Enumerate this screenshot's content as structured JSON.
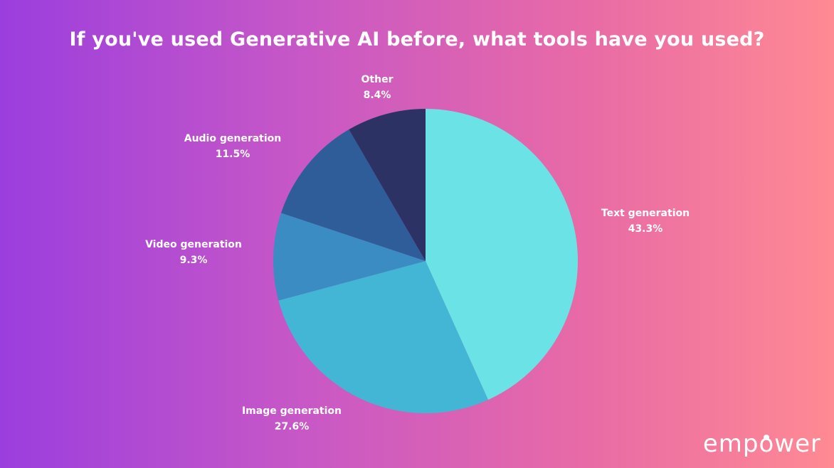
{
  "chart_data": {
    "type": "pie",
    "title": "If you've used Generative AI before, what tools have you used?",
    "slices": [
      {
        "label": "Text generation",
        "value": 43.3,
        "display": "43.3%",
        "color": "#6be3e6"
      },
      {
        "label": "Image generation",
        "value": 27.6,
        "display": "27.6%",
        "color": "#43b6d5"
      },
      {
        "label": "Video generation",
        "value": 9.3,
        "display": "9.3%",
        "color": "#3a8cc2"
      },
      {
        "label": "Audio generation",
        "value": 11.5,
        "display": "11.5%",
        "color": "#2f5d99"
      },
      {
        "label": "Other",
        "value": 8.4,
        "display": "8.4%",
        "color": "#2c3364"
      }
    ],
    "start_angle_deg": 0,
    "direction": "clockwise",
    "legend": "none (labels placed beside slices)"
  },
  "brand": {
    "logo_pre": "emp",
    "logo_o": "o",
    "logo_post": "wer"
  }
}
